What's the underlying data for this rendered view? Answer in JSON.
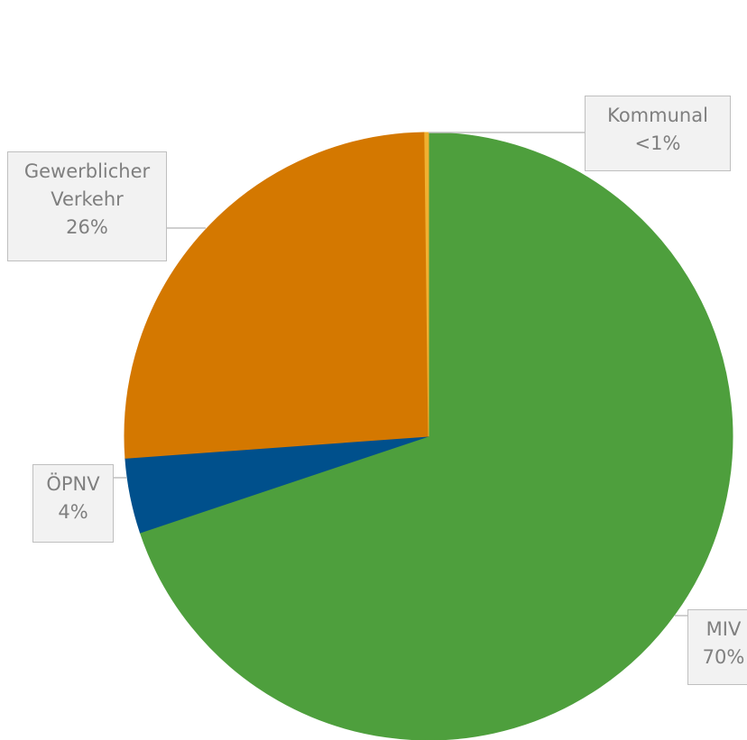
{
  "chart_data": {
    "type": "pie",
    "categories": [
      "MIV",
      "ÖPNV",
      "Gewerblicher Verkehr",
      "Kommunal"
    ],
    "values": [
      70,
      4,
      26,
      0.2
    ],
    "value_labels": [
      "70%",
      "4%",
      "26%",
      "<1%"
    ],
    "colors": [
      "#4e9f3d",
      "#00508c",
      "#d47800",
      "#f0b030"
    ]
  }
}
